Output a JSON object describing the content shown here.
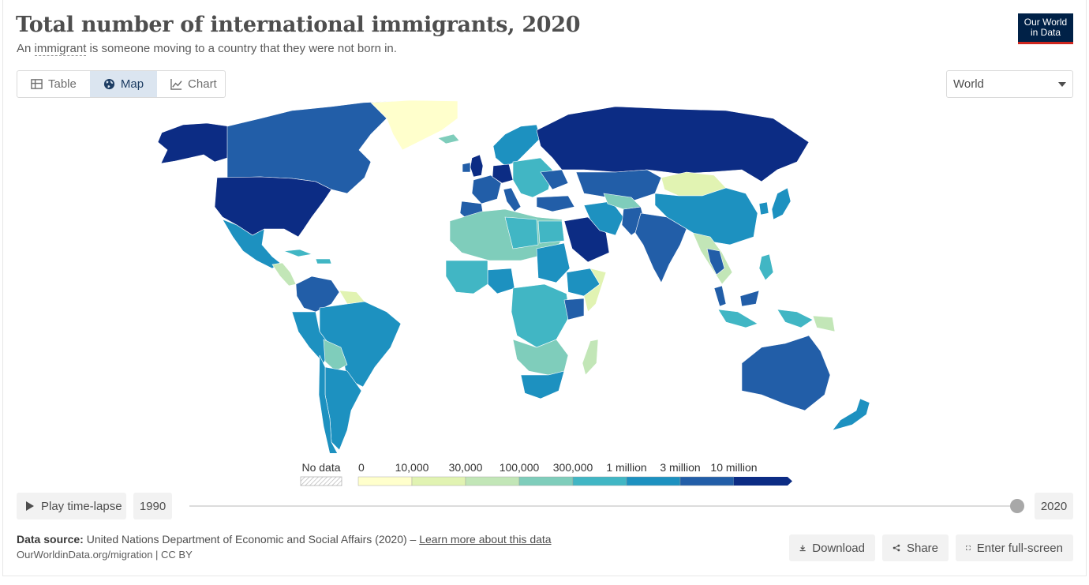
{
  "header": {
    "title": "Total number of international immigrants, 2020",
    "subtitle_prefix": "An ",
    "subtitle_term": "immigrant",
    "subtitle_suffix": " is someone moving to a country that they were not born in.",
    "logo_line1": "Our World",
    "logo_line2": "in Data"
  },
  "tabs": [
    {
      "label": "Table",
      "icon": "table-icon",
      "active": false
    },
    {
      "label": "Map",
      "icon": "globe-icon",
      "active": true
    },
    {
      "label": "Chart",
      "icon": "line-chart-icon",
      "active": false
    }
  ],
  "entity_selector": {
    "value": "World"
  },
  "legend": {
    "no_data_label": "No data",
    "bins": [
      "0",
      "10,000",
      "30,000",
      "100,000",
      "300,000",
      "1 million",
      "3 million",
      "10 million"
    ],
    "colors": [
      "#ffffcc",
      "#e1f3b2",
      "#c2e6b7",
      "#7fcdbb",
      "#41b6c4",
      "#1d91c0",
      "#225ea8",
      "#0c2c84"
    ]
  },
  "timeline": {
    "play_label": "Play time-lapse",
    "start_year": "1990",
    "end_year": "2020"
  },
  "footer": {
    "source_label": "Data source:",
    "source_text": " United Nations Department of Economic and Social Affairs (2020) – ",
    "learn_more": "Learn more about this data",
    "license": "OurWorldinData.org/migration | CC BY"
  },
  "actions": {
    "download": "Download",
    "share": "Share",
    "fullscreen": "Enter full-screen"
  }
}
